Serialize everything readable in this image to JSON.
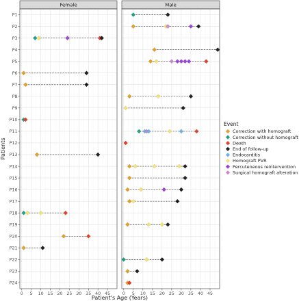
{
  "chart_data": {
    "type": "scatter",
    "xlabel": "Patient's Age (Years)",
    "ylabel": "Patients",
    "xlim": [
      -1,
      50
    ],
    "x_ticks": [
      0,
      5,
      10,
      15,
      20,
      25,
      30,
      35,
      40,
      45
    ],
    "grid": true,
    "legend_position": "right",
    "legend_title": "Event",
    "patients": [
      "P1",
      "P2",
      "P3",
      "P4",
      "P5",
      "P6",
      "P7",
      "P8",
      "P9",
      "P10",
      "P11",
      "P12",
      "P13",
      "P14",
      "P15",
      "P16",
      "P17",
      "P18",
      "P19",
      "P20",
      "P21",
      "P22",
      "P23",
      "P24"
    ],
    "panels": [
      {
        "name": "Female",
        "patient_rows": [
          "P3",
          "P6",
          "P7",
          "P10",
          "P13",
          "P18",
          "P20",
          "P21"
        ]
      },
      {
        "name": "Male",
        "patient_rows": [
          "P1",
          "P2",
          "P4",
          "P5",
          "P8",
          "P9",
          "P11",
          "P12",
          "P14",
          "P15",
          "P16",
          "P17",
          "P19",
          "P22",
          "P23",
          "P24"
        ]
      }
    ],
    "event_types": [
      {
        "name": "Correction with homograft",
        "color": "#e0a02c"
      },
      {
        "name": "Correction without homograft",
        "color": "#1fa386"
      },
      {
        "name": "Death",
        "color": "#e0442a"
      },
      {
        "name": "End of follow-up",
        "color": "#222222"
      },
      {
        "name": "Endocarditis",
        "color": "#6db3e8"
      },
      {
        "name": "Homograft PVR",
        "color": "#f2e27a"
      },
      {
        "name": "Percuteneous reintervention",
        "color": "#9b45d6"
      },
      {
        "name": "Surgical homograft alteration",
        "color": "#cc88cc"
      }
    ],
    "series": [
      {
        "panel": 1,
        "patient": "P1",
        "events": [
          {
            "x": 5,
            "event": 1
          },
          {
            "x": 23,
            "event": 3
          }
        ]
      },
      {
        "panel": 1,
        "patient": "P2",
        "events": [
          {
            "x": 5,
            "event": 0
          },
          {
            "x": 22,
            "event": 5
          },
          {
            "x": 23,
            "event": 7
          },
          {
            "x": 35,
            "event": 6
          },
          {
            "x": 39,
            "event": 3
          }
        ]
      },
      {
        "panel": 0,
        "patient": "P3",
        "events": [
          {
            "x": 7,
            "event": 1
          },
          {
            "x": 9,
            "event": 5
          },
          {
            "x": 24,
            "event": 6
          },
          {
            "x": 41,
            "event": 2
          },
          {
            "x": 42,
            "event": 3
          }
        ]
      },
      {
        "panel": 1,
        "patient": "P4",
        "events": [
          {
            "x": 16,
            "event": 0
          },
          {
            "x": 49,
            "event": 3
          }
        ]
      },
      {
        "panel": 1,
        "patient": "P5",
        "events": [
          {
            "x": 14,
            "event": 0
          },
          {
            "x": 17,
            "event": 5
          },
          {
            "x": 25,
            "event": 7
          },
          {
            "x": 28,
            "event": 6
          },
          {
            "x": 30,
            "event": 6
          },
          {
            "x": 32,
            "event": 6
          },
          {
            "x": 34,
            "event": 6
          },
          {
            "x": 43,
            "event": 2
          }
        ]
      },
      {
        "panel": 0,
        "patient": "P6",
        "events": [
          {
            "x": 1,
            "event": 0
          },
          {
            "x": 34,
            "event": 3
          }
        ]
      },
      {
        "panel": 0,
        "patient": "P7",
        "events": [
          {
            "x": 2,
            "event": 0
          },
          {
            "x": 34,
            "event": 3
          }
        ]
      },
      {
        "panel": 1,
        "patient": "P8",
        "events": [
          {
            "x": 3,
            "event": 0
          },
          {
            "x": 18,
            "event": 5
          },
          {
            "x": 35,
            "event": 3
          }
        ]
      },
      {
        "panel": 1,
        "patient": "P9",
        "events": [
          {
            "x": 1,
            "event": 5
          },
          {
            "x": 31,
            "event": 3
          }
        ]
      },
      {
        "panel": 0,
        "patient": "P10",
        "events": [
          {
            "x": 1,
            "event": 1
          },
          {
            "x": 2,
            "event": 2
          }
        ]
      },
      {
        "panel": 1,
        "patient": "P11",
        "events": [
          {
            "x": 8,
            "event": 1
          },
          {
            "x": 11,
            "event": 4
          },
          {
            "x": 12,
            "event": 7
          },
          {
            "x": 13,
            "event": 4
          },
          {
            "x": 24,
            "event": 5
          },
          {
            "x": 30,
            "event": 4
          },
          {
            "x": 38,
            "event": 2
          }
        ]
      },
      {
        "panel": 1,
        "patient": "P12",
        "events": [
          {
            "x": 1,
            "event": 2
          }
        ]
      },
      {
        "panel": 0,
        "patient": "P13",
        "events": [
          {
            "x": 8,
            "event": 0
          },
          {
            "x": 40,
            "event": 3
          }
        ]
      },
      {
        "panel": 1,
        "patient": "P14",
        "events": [
          {
            "x": 3,
            "event": 0
          },
          {
            "x": 6,
            "event": 5
          },
          {
            "x": 16,
            "event": 5
          },
          {
            "x": 29,
            "event": 5
          },
          {
            "x": 32,
            "event": 3
          }
        ]
      },
      {
        "panel": 1,
        "patient": "P15",
        "events": [
          {
            "x": 3,
            "event": 0
          },
          {
            "x": 32,
            "event": 3
          }
        ]
      },
      {
        "panel": 1,
        "patient": "P16",
        "events": [
          {
            "x": 2,
            "event": 0
          },
          {
            "x": 9,
            "event": 5
          },
          {
            "x": 21,
            "event": 6
          },
          {
            "x": 30,
            "event": 3
          }
        ]
      },
      {
        "panel": 1,
        "patient": "P17",
        "events": [
          {
            "x": 3,
            "event": 0
          },
          {
            "x": 5,
            "event": 5
          },
          {
            "x": 28,
            "event": 3
          }
        ]
      },
      {
        "panel": 0,
        "patient": "P18",
        "events": [
          {
            "x": 1,
            "event": 1
          },
          {
            "x": 3,
            "event": 5
          },
          {
            "x": 10,
            "event": 5
          },
          {
            "x": 23,
            "event": 2
          }
        ]
      },
      {
        "panel": 1,
        "patient": "P19",
        "events": [
          {
            "x": 2,
            "event": 0
          },
          {
            "x": 13,
            "event": 5
          },
          {
            "x": 20,
            "event": 5
          },
          {
            "x": 23,
            "event": 3
          }
        ]
      },
      {
        "panel": 0,
        "patient": "P20",
        "events": [
          {
            "x": 22,
            "event": 0
          },
          {
            "x": 35,
            "event": 2
          }
        ]
      },
      {
        "panel": 0,
        "patient": "P21",
        "events": [
          {
            "x": 1,
            "event": 0
          },
          {
            "x": 11,
            "event": 3
          }
        ]
      },
      {
        "panel": 1,
        "patient": "P22",
        "events": [
          {
            "x": 0,
            "event": 1
          },
          {
            "x": 12,
            "event": 5
          },
          {
            "x": 20,
            "event": 3
          }
        ]
      },
      {
        "panel": 1,
        "patient": "P23",
        "events": [
          {
            "x": 2,
            "event": 0
          },
          {
            "x": 7,
            "event": 3
          }
        ]
      },
      {
        "panel": 1,
        "patient": "P24",
        "events": [
          {
            "x": 2,
            "event": 0
          },
          {
            "x": 3,
            "event": 2
          }
        ]
      }
    ]
  }
}
